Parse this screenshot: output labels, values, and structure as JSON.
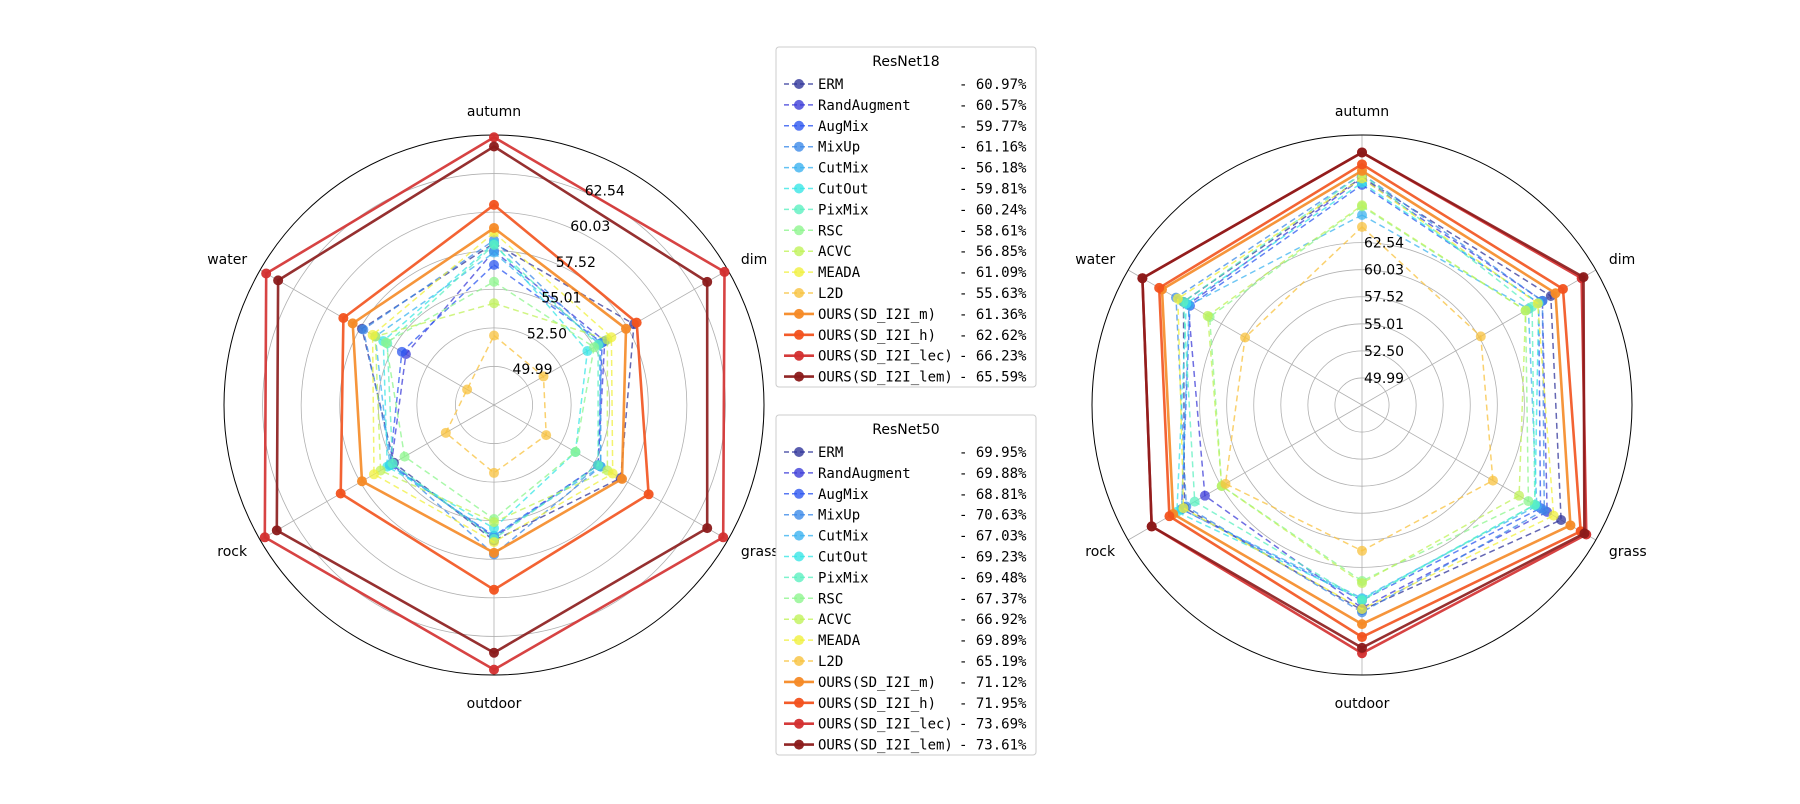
{
  "chart_data": {
    "type": "radar",
    "axes": [
      "autumn",
      "dim",
      "grass",
      "outdoor",
      "rock",
      "water"
    ],
    "tick_labels": [
      "49.99",
      "52.50",
      "55.01",
      "57.52",
      "60.03",
      "62.54"
    ],
    "charts": [
      {
        "id": "resnet18",
        "legend_title": "ResNet18",
        "rlim": [
          47.48,
          65.05
        ],
        "series": [
          {
            "name": "ERM",
            "color": "#30349a",
            "style": "dashed",
            "legend_value": "- 60.97%",
            "values": [
              58.0,
              58.0,
              57.0,
              56.3,
              55.0,
              57.4
            ]
          },
          {
            "name": "RandAugment",
            "color": "#3d3dd8",
            "style": "dashed",
            "legend_value": "- 60.57%",
            "values": [
              57.5,
              55.8,
              55.3,
              56.1,
              55.2,
              54.1
            ]
          },
          {
            "name": "AugMix",
            "color": "#2e58f0",
            "style": "dashed",
            "legend_value": "- 59.77%",
            "values": [
              56.6,
              55.6,
              55.3,
              56.0,
              55.3,
              54.4
            ]
          },
          {
            "name": "MixUp",
            "color": "#3d8be8",
            "style": "dashed",
            "legend_value": "- 61.16%",
            "values": [
              58.2,
              55.5,
              55.5,
              57.2,
              55.1,
              57.3
            ]
          },
          {
            "name": "CutMix",
            "color": "#3db3f0",
            "style": "dashed",
            "legend_value": "- 56.18%",
            "values": [
              57.4,
              55.4,
              55.5,
              56.0,
              55.3,
              56.4
            ]
          },
          {
            "name": "CutOut",
            "color": "#3ae6e6",
            "style": "dashed",
            "legend_value": "- 59.81%",
            "values": [
              58.0,
              54.5,
              53.6,
              55.5,
              55.5,
              55.8
            ]
          },
          {
            "name": "PixMix",
            "color": "#5df0c0",
            "style": "dashed",
            "legend_value": "- 60.24%",
            "values": [
              57.9,
              55.3,
              55.3,
              56.2,
              55.1,
              55.5
            ]
          },
          {
            "name": "RSC",
            "color": "#8ef58e",
            "style": "dashed",
            "legend_value": "- 58.61%",
            "values": [
              55.5,
              55.0,
              53.6,
              54.9,
              54.2,
              55.6
            ]
          },
          {
            "name": "ACVC",
            "color": "#c0f25a",
            "style": "dashed",
            "legend_value": "- 56.85%",
            "values": [
              54.1,
              56.0,
              56.0,
              55.1,
              56.0,
              56.4
            ]
          },
          {
            "name": "MEADA",
            "color": "#f0f03d",
            "style": "dashed",
            "legend_value": "- 61.09%",
            "values": [
              58.7,
              56.3,
              56.4,
              56.4,
              56.5,
              56.6
            ]
          },
          {
            "name": "L2D",
            "color": "#f8c23d",
            "style": "dashed",
            "legend_value": "- 55.63%",
            "values": [
              52.0,
              51.2,
              51.4,
              51.9,
              51.1,
              49.5
            ]
          },
          {
            "name": "OURS(SD_I2I_m)",
            "color": "#f58a26",
            "style": "solid",
            "legend_value": "- 61.36%",
            "values": [
              59.0,
              57.4,
              57.1,
              57.1,
              57.4,
              58.1
            ]
          },
          {
            "name": "OURS(SD_I2I_h)",
            "color": "#f2521d",
            "style": "solid",
            "legend_value": "- 62.62%",
            "values": [
              60.5,
              58.2,
              59.1,
              59.5,
              59.0,
              58.8
            ]
          },
          {
            "name": "OURS(SD_I2I_lec)",
            "color": "#d32f2f",
            "style": "solid",
            "legend_value": "- 66.23%",
            "values": [
              64.9,
              64.8,
              64.7,
              64.7,
              64.7,
              64.6
            ]
          },
          {
            "name": "OURS(SD_I2I_lem)",
            "color": "#8b1a1a",
            "style": "solid",
            "legend_value": "- 65.59%",
            "values": [
              64.3,
              63.5,
              63.5,
              63.6,
              63.8,
              63.7
            ]
          }
        ]
      },
      {
        "id": "resnet50",
        "legend_title": "ResNet50",
        "rlim": [
          47.48,
          72.52
        ],
        "series": [
          {
            "name": "ERM",
            "color": "#30349a",
            "style": "dashed",
            "legend_value": "- 69.95%",
            "values": [
              68.6,
              67.7,
              68.8,
              66.5,
              66.5,
              66.6
            ]
          },
          {
            "name": "RandAugment",
            "color": "#3d3dd8",
            "style": "dashed",
            "legend_value": "- 69.88%",
            "values": [
              68.5,
              66.8,
              67.3,
              66.3,
              64.3,
              66.1
            ]
          },
          {
            "name": "AugMix",
            "color": "#2e58f0",
            "style": "dashed",
            "legend_value": "- 68.81%",
            "values": [
              67.9,
              66.4,
              66.6,
              65.6,
              66.8,
              65.9
            ]
          },
          {
            "name": "MixUp",
            "color": "#3d8be8",
            "style": "dashed",
            "legend_value": "- 70.63%",
            "values": [
              68.9,
              66.8,
              67.0,
              66.7,
              66.3,
              67.4
            ]
          },
          {
            "name": "CutMix",
            "color": "#3db3f0",
            "style": "dashed",
            "legend_value": "- 67.03%",
            "values": [
              65.1,
              65.3,
              66.2,
              65.4,
              66.8,
              66.0
            ]
          },
          {
            "name": "CutOut",
            "color": "#3ae6e6",
            "style": "dashed",
            "legend_value": "- 69.23%",
            "values": [
              68.1,
              66.4,
              66.0,
              65.5,
              67.3,
              66.3
            ]
          },
          {
            "name": "PixMix",
            "color": "#5df0c0",
            "style": "dashed",
            "legend_value": "- 69.48%",
            "values": [
              68.9,
              65.7,
              66.0,
              65.6,
              65.4,
              66.6
            ]
          },
          {
            "name": "RSC",
            "color": "#8ef58e",
            "style": "dashed",
            "legend_value": "- 67.37%",
            "values": [
              65.9,
              65.0,
              65.3,
              63.8,
              62.5,
              63.8
            ]
          },
          {
            "name": "ACVC",
            "color": "#c0f25a",
            "style": "dashed",
            "legend_value": "- 66.92%",
            "values": [
              66.0,
              65.0,
              64.3,
              64.0,
              62.5,
              64.0
            ]
          },
          {
            "name": "MEADA",
            "color": "#f0f03d",
            "style": "dashed",
            "legend_value": "- 69.89%",
            "values": [
              68.5,
              66.3,
              68.0,
              66.4,
              66.6,
              67.2
            ]
          },
          {
            "name": "L2D",
            "color": "#f8c23d",
            "style": "dashed",
            "legend_value": "- 65.19%",
            "values": [
              64.0,
              60.2,
              61.5,
              61.0,
              62.1,
              60.0
            ]
          },
          {
            "name": "OURS(SD_I2I_m)",
            "color": "#f58a26",
            "style": "solid",
            "legend_value": "- 71.12%",
            "values": [
              69.2,
              68.2,
              69.8,
              67.8,
              67.7,
              68.9
            ]
          },
          {
            "name": "OURS(SD_I2I_h)",
            "color": "#f2521d",
            "style": "solid",
            "legend_value": "- 71.95%",
            "values": [
              69.8,
              69.0,
              70.9,
              69.0,
              68.1,
              69.2
            ]
          },
          {
            "name": "OURS(SD_I2I_lec)",
            "color": "#d32f2f",
            "style": "solid",
            "legend_value": "- 73.69%",
            "values": [
              70.9,
              71.0,
              71.5,
              70.5,
              70.0,
              71.0
            ]
          },
          {
            "name": "OURS(SD_I2I_lem)",
            "color": "#8b1a1a",
            "style": "solid",
            "legend_value": "- 73.61%",
            "values": [
              70.9,
              71.2,
              71.3,
              70.0,
              70.0,
              71.0
            ]
          }
        ]
      }
    ]
  }
}
